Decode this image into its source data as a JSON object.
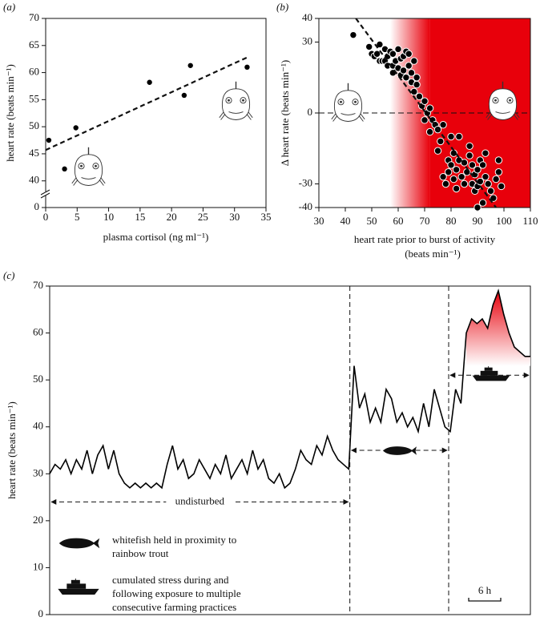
{
  "chart_data": [
    {
      "type": "scatter",
      "panel_label": "(a)",
      "xlabel": "plasma cortisol (ng ml⁻¹)",
      "ylabel": "heart rate (beats min⁻¹)",
      "x": [
        0.5,
        3,
        4.8,
        16.5,
        22,
        23,
        32
      ],
      "y": [
        47.5,
        42.2,
        49.8,
        58.2,
        55.8,
        61.3,
        61
      ],
      "xlim": [
        0,
        35
      ],
      "ylim": [
        37,
        70
      ],
      "xticks": [
        0,
        5,
        10,
        15,
        20,
        25,
        30,
        35
      ],
      "yticks": [
        0,
        40,
        45,
        50,
        55,
        60,
        65,
        70
      ],
      "y_break": true,
      "trendline": {
        "x": [
          0,
          32
        ],
        "y": [
          45.7,
          62.8
        ]
      },
      "color": "#000000"
    },
    {
      "type": "scatter",
      "panel_label": "(b)",
      "xlabel": [
        "heart rate prior to burst of activity",
        "(beats min⁻¹)"
      ],
      "ylabel": "Δ heart rate (beats min⁻¹)",
      "x": [
        43,
        49,
        50,
        51,
        52,
        53,
        53,
        54,
        55,
        55,
        56,
        56,
        57,
        58,
        58,
        58,
        59,
        60,
        60,
        61,
        61,
        62,
        62,
        63,
        63,
        64,
        64,
        65,
        65,
        66,
        66,
        67,
        67,
        68,
        69,
        70,
        70,
        71,
        72,
        72,
        73,
        74,
        75,
        75,
        76,
        77,
        77,
        78,
        79,
        79,
        80,
        80,
        81,
        81,
        82,
        82,
        83,
        83,
        84,
        85,
        85,
        86,
        87,
        87,
        88,
        88,
        89,
        89,
        90,
        90,
        91,
        91,
        92,
        93,
        93,
        94,
        95,
        96,
        97,
        98,
        98,
        99,
        90,
        92
      ],
      "y": [
        33,
        28,
        25,
        24,
        25,
        29,
        22,
        22,
        27,
        22,
        20,
        24,
        26,
        25,
        20,
        17,
        22,
        27,
        19,
        16,
        23,
        24,
        18,
        15,
        26,
        25,
        20,
        17,
        13,
        22,
        9,
        15,
        12,
        7,
        3,
        5,
        -3,
        0,
        2,
        -8,
        -3,
        -5,
        -7,
        -16,
        -12,
        -5,
        -27,
        -30,
        -20,
        -25,
        -22,
        -10,
        -28,
        -17,
        -24,
        -32,
        -20,
        -10,
        -27,
        -21,
        -30,
        -25,
        -18,
        -14,
        -22,
        -30,
        -26,
        -33,
        -24,
        -31,
        -29,
        -20,
        -38,
        -27,
        -17,
        -30,
        -33,
        -36,
        -28,
        -20,
        -25,
        -31,
        -40,
        -22
      ],
      "xlim": [
        30,
        110
      ],
      "ylim": [
        -40,
        40
      ],
      "xticks": [
        30,
        40,
        50,
        60,
        70,
        80,
        90,
        100,
        110
      ],
      "yticks": [
        -40,
        -30,
        0,
        30,
        40
      ],
      "zero_line": true,
      "trendline": {
        "x": [
          44,
          97
        ],
        "y": [
          40,
          -42
        ]
      },
      "shading": {
        "from": 57,
        "to": 72,
        "color": "#e8000b"
      },
      "color": "#000000"
    },
    {
      "type": "line",
      "panel_label": "(c)",
      "ylabel": "heart rate (beats min⁻¹)",
      "x": [
        0,
        1,
        2,
        3,
        4,
        5,
        6,
        7,
        8,
        9,
        10,
        11,
        12,
        13,
        14,
        15,
        16,
        17,
        18,
        19,
        20,
        21,
        22,
        23,
        24,
        25,
        26,
        27,
        28,
        29,
        30,
        31,
        32,
        33,
        34,
        35,
        36,
        37,
        38,
        39,
        40,
        41,
        42,
        43,
        44,
        45,
        46,
        47,
        48,
        49,
        50,
        51,
        52,
        53,
        54,
        55,
        56,
        57,
        58,
        59,
        60,
        61,
        62,
        63,
        64,
        65,
        66,
        67,
        68,
        69,
        70,
        71,
        72,
        73,
        74,
        75,
        76,
        77,
        78,
        79,
        80,
        81,
        82,
        83,
        84,
        85,
        86,
        87,
        88,
        89,
        90
      ],
      "values": [
        30,
        32,
        31,
        33,
        30,
        33,
        31,
        35,
        30,
        34,
        36,
        31,
        35,
        30,
        28,
        27,
        28,
        27,
        28,
        27,
        28,
        27,
        32,
        36,
        31,
        33,
        29,
        30,
        33,
        31,
        29,
        32,
        30,
        34,
        29,
        31,
        33,
        30,
        35,
        31,
        33,
        29,
        28,
        30,
        27,
        28,
        31,
        35,
        33,
        32,
        36,
        34,
        38,
        35,
        33,
        32,
        31,
        53,
        44,
        47,
        41,
        44,
        41,
        48,
        46,
        41,
        43,
        40,
        42,
        39,
        45,
        40,
        48,
        44,
        40,
        39,
        48,
        45,
        60,
        63,
        62,
        63,
        61,
        66,
        69,
        64,
        60,
        57,
        56,
        55,
        55
      ],
      "xlim": [
        0,
        90
      ],
      "ylim": [
        0,
        70
      ],
      "yticks": [
        0,
        10,
        20,
        30,
        40,
        50,
        60,
        70
      ],
      "dividers": [
        56.2,
        74.7
      ],
      "annotation": "undisturbed",
      "shading": {
        "x_from": 78,
        "y_from": 53,
        "color": "#e8000b"
      },
      "legend": [
        [
          "whitefish held in proximity to",
          "rainbow trout"
        ],
        [
          "cumulated stress during and",
          "following exposure to multiple",
          "consecutive farming practices"
        ]
      ],
      "scale_bar": {
        "length": 6,
        "label": "6 h"
      },
      "color": "#000000"
    }
  ]
}
